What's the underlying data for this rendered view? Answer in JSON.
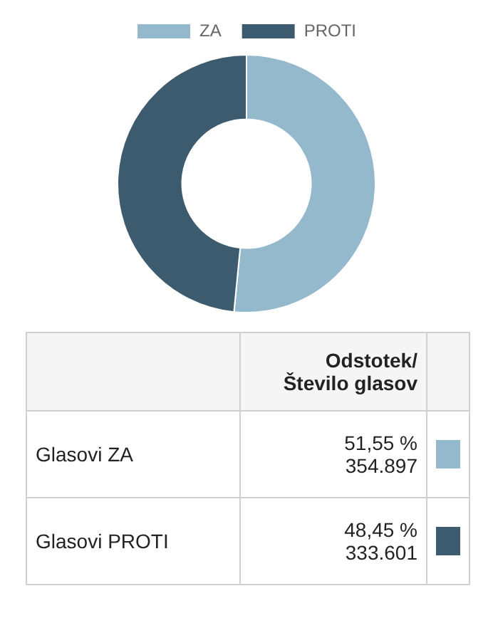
{
  "chart_data": {
    "type": "donut",
    "categories": [
      "ZA",
      "PROTI"
    ],
    "values": [
      51.55,
      48.45
    ],
    "colors": [
      "#95b9cc",
      "#3d5b6e"
    ],
    "legend": "top",
    "annotations": [
      "Odstotek/\nŠtevilo glasov",
      "Glasovi ZA",
      "51,55 %\n354.897",
      "Glasovi PROTI",
      "48,45 %\n333.601"
    ]
  }
}
